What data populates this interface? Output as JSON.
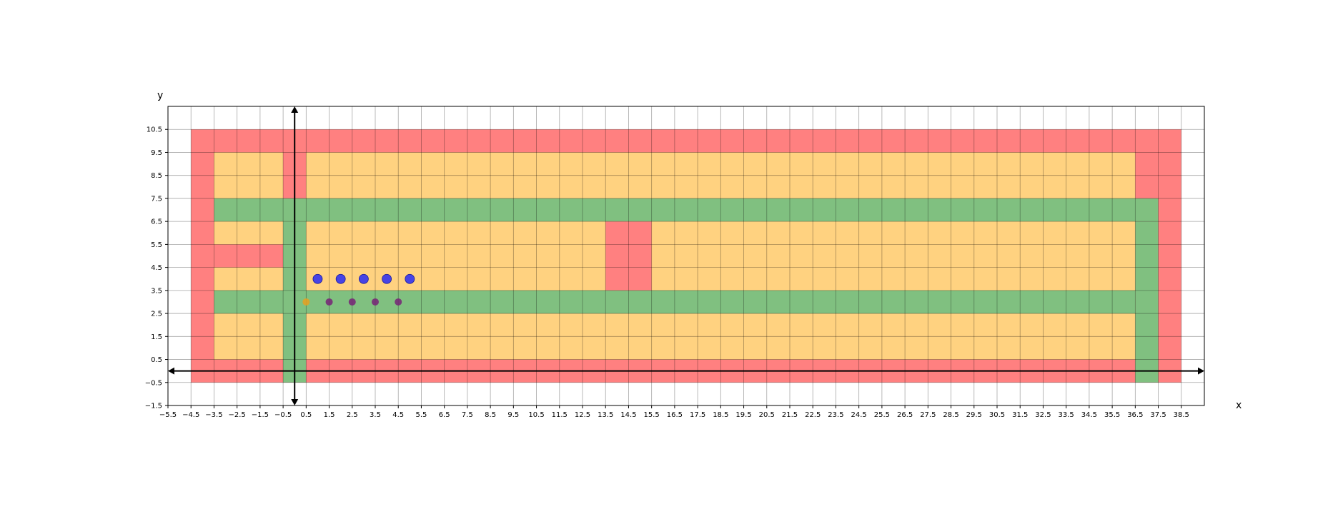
{
  "chart_data": {
    "type": "grid-map",
    "xlabel": "x",
    "ylabel": "y",
    "xlim": [
      -5.5,
      39.5
    ],
    "ylim": [
      -1.5,
      11.5
    ],
    "grid": true,
    "xticks": [
      "-5.5",
      "-4.5",
      "-3.5",
      "-2.5",
      "-1.5",
      "-0.5",
      "0.5",
      "1.5",
      "2.5",
      "3.5",
      "4.5",
      "5.5",
      "6.5",
      "7.5",
      "8.5",
      "9.5",
      "10.5",
      "11.5",
      "12.5",
      "13.5",
      "14.5",
      "15.5",
      "16.5",
      "17.5",
      "18.5",
      "19.5",
      "20.5",
      "21.5",
      "22.5",
      "23.5",
      "24.5",
      "25.5",
      "26.5",
      "27.5",
      "28.5",
      "29.5",
      "30.5",
      "31.5",
      "32.5",
      "33.5",
      "34.5",
      "35.5",
      "36.5",
      "37.5",
      "38.5"
    ],
    "yticks": [
      "-1.5",
      "-0.5",
      "0.5",
      "1.5",
      "2.5",
      "3.5",
      "4.5",
      "5.5",
      "6.5",
      "7.5",
      "8.5",
      "9.5",
      "10.5"
    ],
    "colors": {
      "wall": "#ff8080",
      "free": "#ffd280",
      "road": "#80c080",
      "agent": "#3333ee",
      "target": "#772277",
      "origin": "#e8a020"
    },
    "regions": [
      {
        "kind": "wall",
        "x0": -4.5,
        "x1": 38.5,
        "y0": -0.5,
        "y1": 10.5
      },
      {
        "kind": "free",
        "x0": -3.5,
        "x1": 36.5,
        "y0": 0.5,
        "y1": 9.5
      },
      {
        "kind": "wall",
        "x0": -0.5,
        "x1": 0.5,
        "y0": 7.5,
        "y1": 9.5
      },
      {
        "kind": "wall",
        "x0": -3.5,
        "x1": -0.5,
        "y0": 4.5,
        "y1": 5.5
      },
      {
        "kind": "wall",
        "x0": 13.5,
        "x1": 15.5,
        "y0": 3.5,
        "y1": 6.5
      },
      {
        "kind": "road",
        "x0": -3.5,
        "x1": 37.5,
        "y0": 6.5,
        "y1": 7.5
      },
      {
        "kind": "road",
        "x0": -3.5,
        "x1": 36.5,
        "y0": 2.5,
        "y1": 3.5
      },
      {
        "kind": "road",
        "x0": -0.5,
        "x1": 0.5,
        "y0": -0.5,
        "y1": 6.5
      },
      {
        "kind": "road",
        "x0": 36.5,
        "x1": 37.5,
        "y0": -0.5,
        "y1": 6.5
      }
    ],
    "series": [
      {
        "kind": "agent",
        "points": [
          [
            1,
            4
          ],
          [
            2,
            4
          ],
          [
            3,
            4
          ],
          [
            4,
            4
          ],
          [
            5,
            4
          ]
        ]
      },
      {
        "kind": "target",
        "points": [
          [
            1.5,
            3
          ],
          [
            2.5,
            3
          ],
          [
            3.5,
            3
          ],
          [
            4.5,
            3
          ]
        ]
      },
      {
        "kind": "origin",
        "points": [
          [
            0.5,
            3
          ]
        ]
      }
    ]
  }
}
